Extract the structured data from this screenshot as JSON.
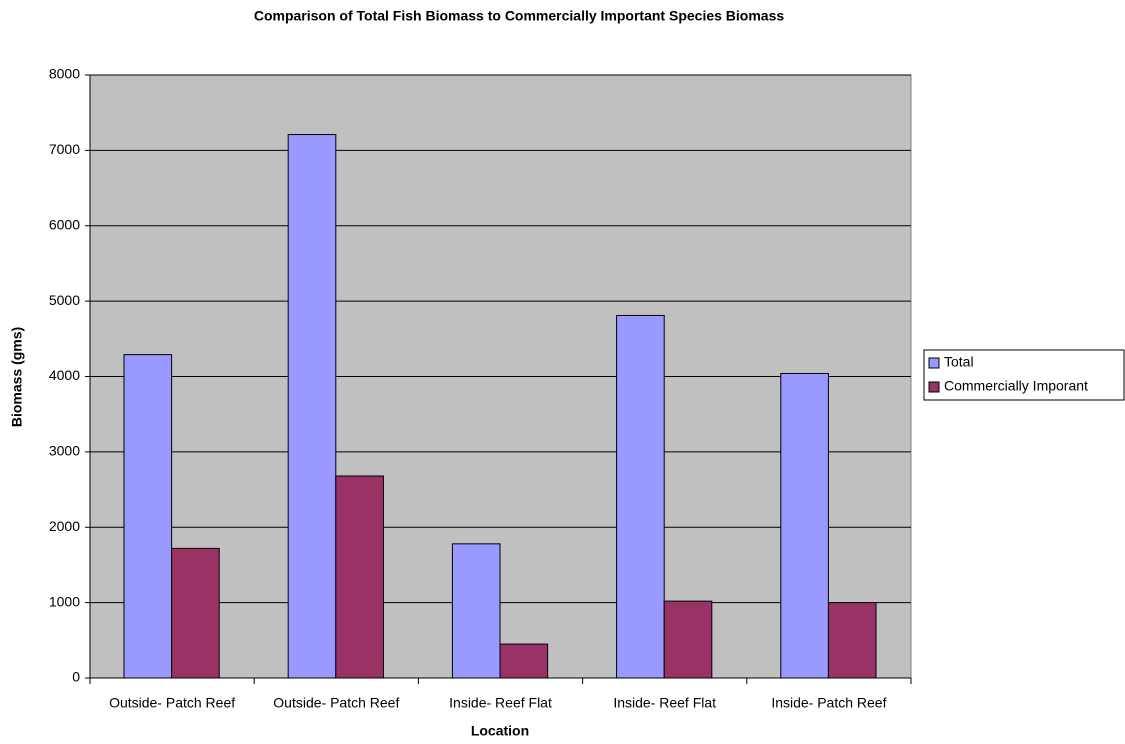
{
  "chart_data": {
    "type": "bar",
    "title": "Comparison of Total Fish Biomass to Commercially Important Species Biomass",
    "x_label": "Location",
    "y_label": "Biomass (gms)",
    "categories": [
      "Outside- Patch Reef",
      "Outside- Patch Reef",
      "Inside- Reef Flat",
      "Inside- Reef Flat",
      "Inside- Patch Reef"
    ],
    "series": [
      {
        "name": "Total",
        "color": "#9999ff",
        "values": [
          4290,
          7210,
          1780,
          4810,
          4040
        ]
      },
      {
        "name": "Commercially Imporant",
        "color": "#993366",
        "values": [
          1720,
          2680,
          450,
          1020,
          1000
        ]
      }
    ],
    "ylim": [
      0,
      8000
    ],
    "yticks": [
      0,
      1000,
      2000,
      3000,
      4000,
      5000,
      6000,
      7000,
      8000
    ],
    "grid": true,
    "legend": "right",
    "plot_background": "#c0c0c0"
  }
}
